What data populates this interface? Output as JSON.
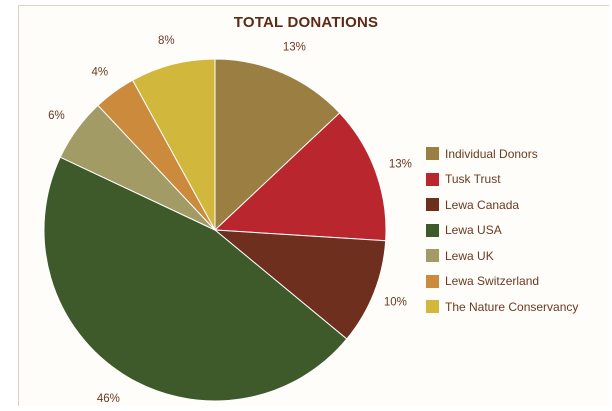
{
  "chart_data": {
    "type": "pie",
    "title": "TOTAL DONATIONS",
    "categories": [
      "Individual Donors",
      "Tusk Trust",
      "Lewa Canada",
      "Lewa USA",
      "Lewa UK",
      "Lewa Switzerland",
      "The Nature Conservancy"
    ],
    "values": [
      13,
      13,
      10,
      46,
      6,
      4,
      8
    ],
    "labels": [
      "13%",
      "13%",
      "10%",
      "46%",
      "6%",
      "4%",
      "8%"
    ],
    "colors": [
      "#9b7f42",
      "#b9262e",
      "#6e2f1e",
      "#3e5a2b",
      "#a39b65",
      "#cc8a3c",
      "#d2b73d"
    ],
    "legend_position": "right"
  }
}
